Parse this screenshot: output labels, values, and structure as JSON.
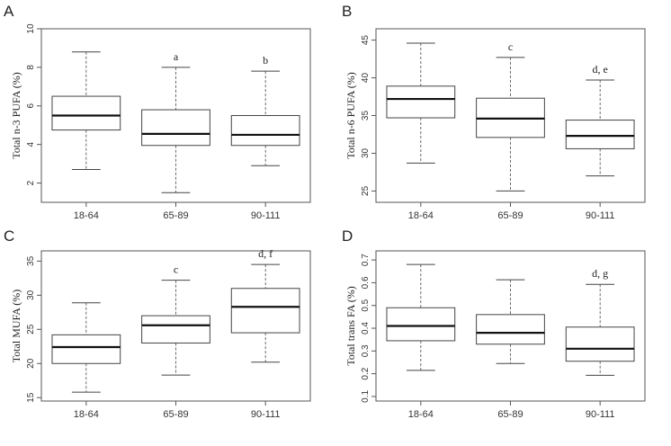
{
  "chart_data": [
    {
      "type": "box",
      "panel": "A",
      "ylabel": "Total n-3 PUFA (%)",
      "ylim": [
        1,
        10
      ],
      "yticks": [
        2,
        4,
        6,
        8,
        10
      ],
      "categories": [
        "18-64",
        "65-89",
        "90-111"
      ],
      "boxes": [
        {
          "min": 2.7,
          "q1": 4.75,
          "median": 5.5,
          "q3": 6.5,
          "max": 8.8,
          "label": ""
        },
        {
          "min": 1.5,
          "q1": 3.95,
          "median": 4.55,
          "q3": 5.8,
          "max": 8.0,
          "label": "a"
        },
        {
          "min": 2.9,
          "q1": 3.95,
          "median": 4.5,
          "q3": 5.5,
          "max": 7.8,
          "label": "b"
        }
      ]
    },
    {
      "type": "box",
      "panel": "B",
      "ylabel": "Total n-6 PUFA (%)",
      "ylim": [
        23.5,
        46.5
      ],
      "yticks": [
        25,
        30,
        35,
        40,
        45
      ],
      "categories": [
        "18-64",
        "65-89",
        "90-111"
      ],
      "boxes": [
        {
          "min": 28.7,
          "q1": 34.7,
          "median": 37.2,
          "q3": 38.9,
          "max": 44.6,
          "label": ""
        },
        {
          "min": 25.0,
          "q1": 32.1,
          "median": 34.6,
          "q3": 37.3,
          "max": 42.7,
          "label": "c"
        },
        {
          "min": 27.0,
          "q1": 30.6,
          "median": 32.3,
          "q3": 34.4,
          "max": 39.7,
          "label": "d, e"
        }
      ]
    },
    {
      "type": "box",
      "panel": "C",
      "ylabel": "Total MUFA (%)",
      "ylim": [
        14.5,
        36.5
      ],
      "yticks": [
        15,
        20,
        25,
        30,
        35
      ],
      "categories": [
        "18-64",
        "65-89",
        "90-111"
      ],
      "boxes": [
        {
          "min": 15.8,
          "q1": 20.0,
          "median": 22.4,
          "q3": 24.2,
          "max": 28.9,
          "label": ""
        },
        {
          "min": 18.3,
          "q1": 23.0,
          "median": 25.6,
          "q3": 27.0,
          "max": 32.2,
          "label": "c"
        },
        {
          "min": 20.2,
          "q1": 24.5,
          "median": 28.3,
          "q3": 31.0,
          "max": 34.5,
          "label": "d, f"
        }
      ]
    },
    {
      "type": "box",
      "panel": "D",
      "ylabel": "Total trans FA (%)",
      "ylim": [
        0.08,
        0.74
      ],
      "yticks": [
        0.1,
        0.2,
        0.3,
        0.4,
        0.5,
        0.6,
        0.7
      ],
      "categories": [
        "18-64",
        "65-89",
        "90-111"
      ],
      "boxes": [
        {
          "min": 0.215,
          "q1": 0.345,
          "median": 0.41,
          "q3": 0.49,
          "max": 0.68,
          "label": ""
        },
        {
          "min": 0.245,
          "q1": 0.33,
          "median": 0.38,
          "q3": 0.46,
          "max": 0.613,
          "label": ""
        },
        {
          "min": 0.193,
          "q1": 0.255,
          "median": 0.31,
          "q3": 0.405,
          "max": 0.593,
          "label": "d, g"
        }
      ]
    }
  ]
}
